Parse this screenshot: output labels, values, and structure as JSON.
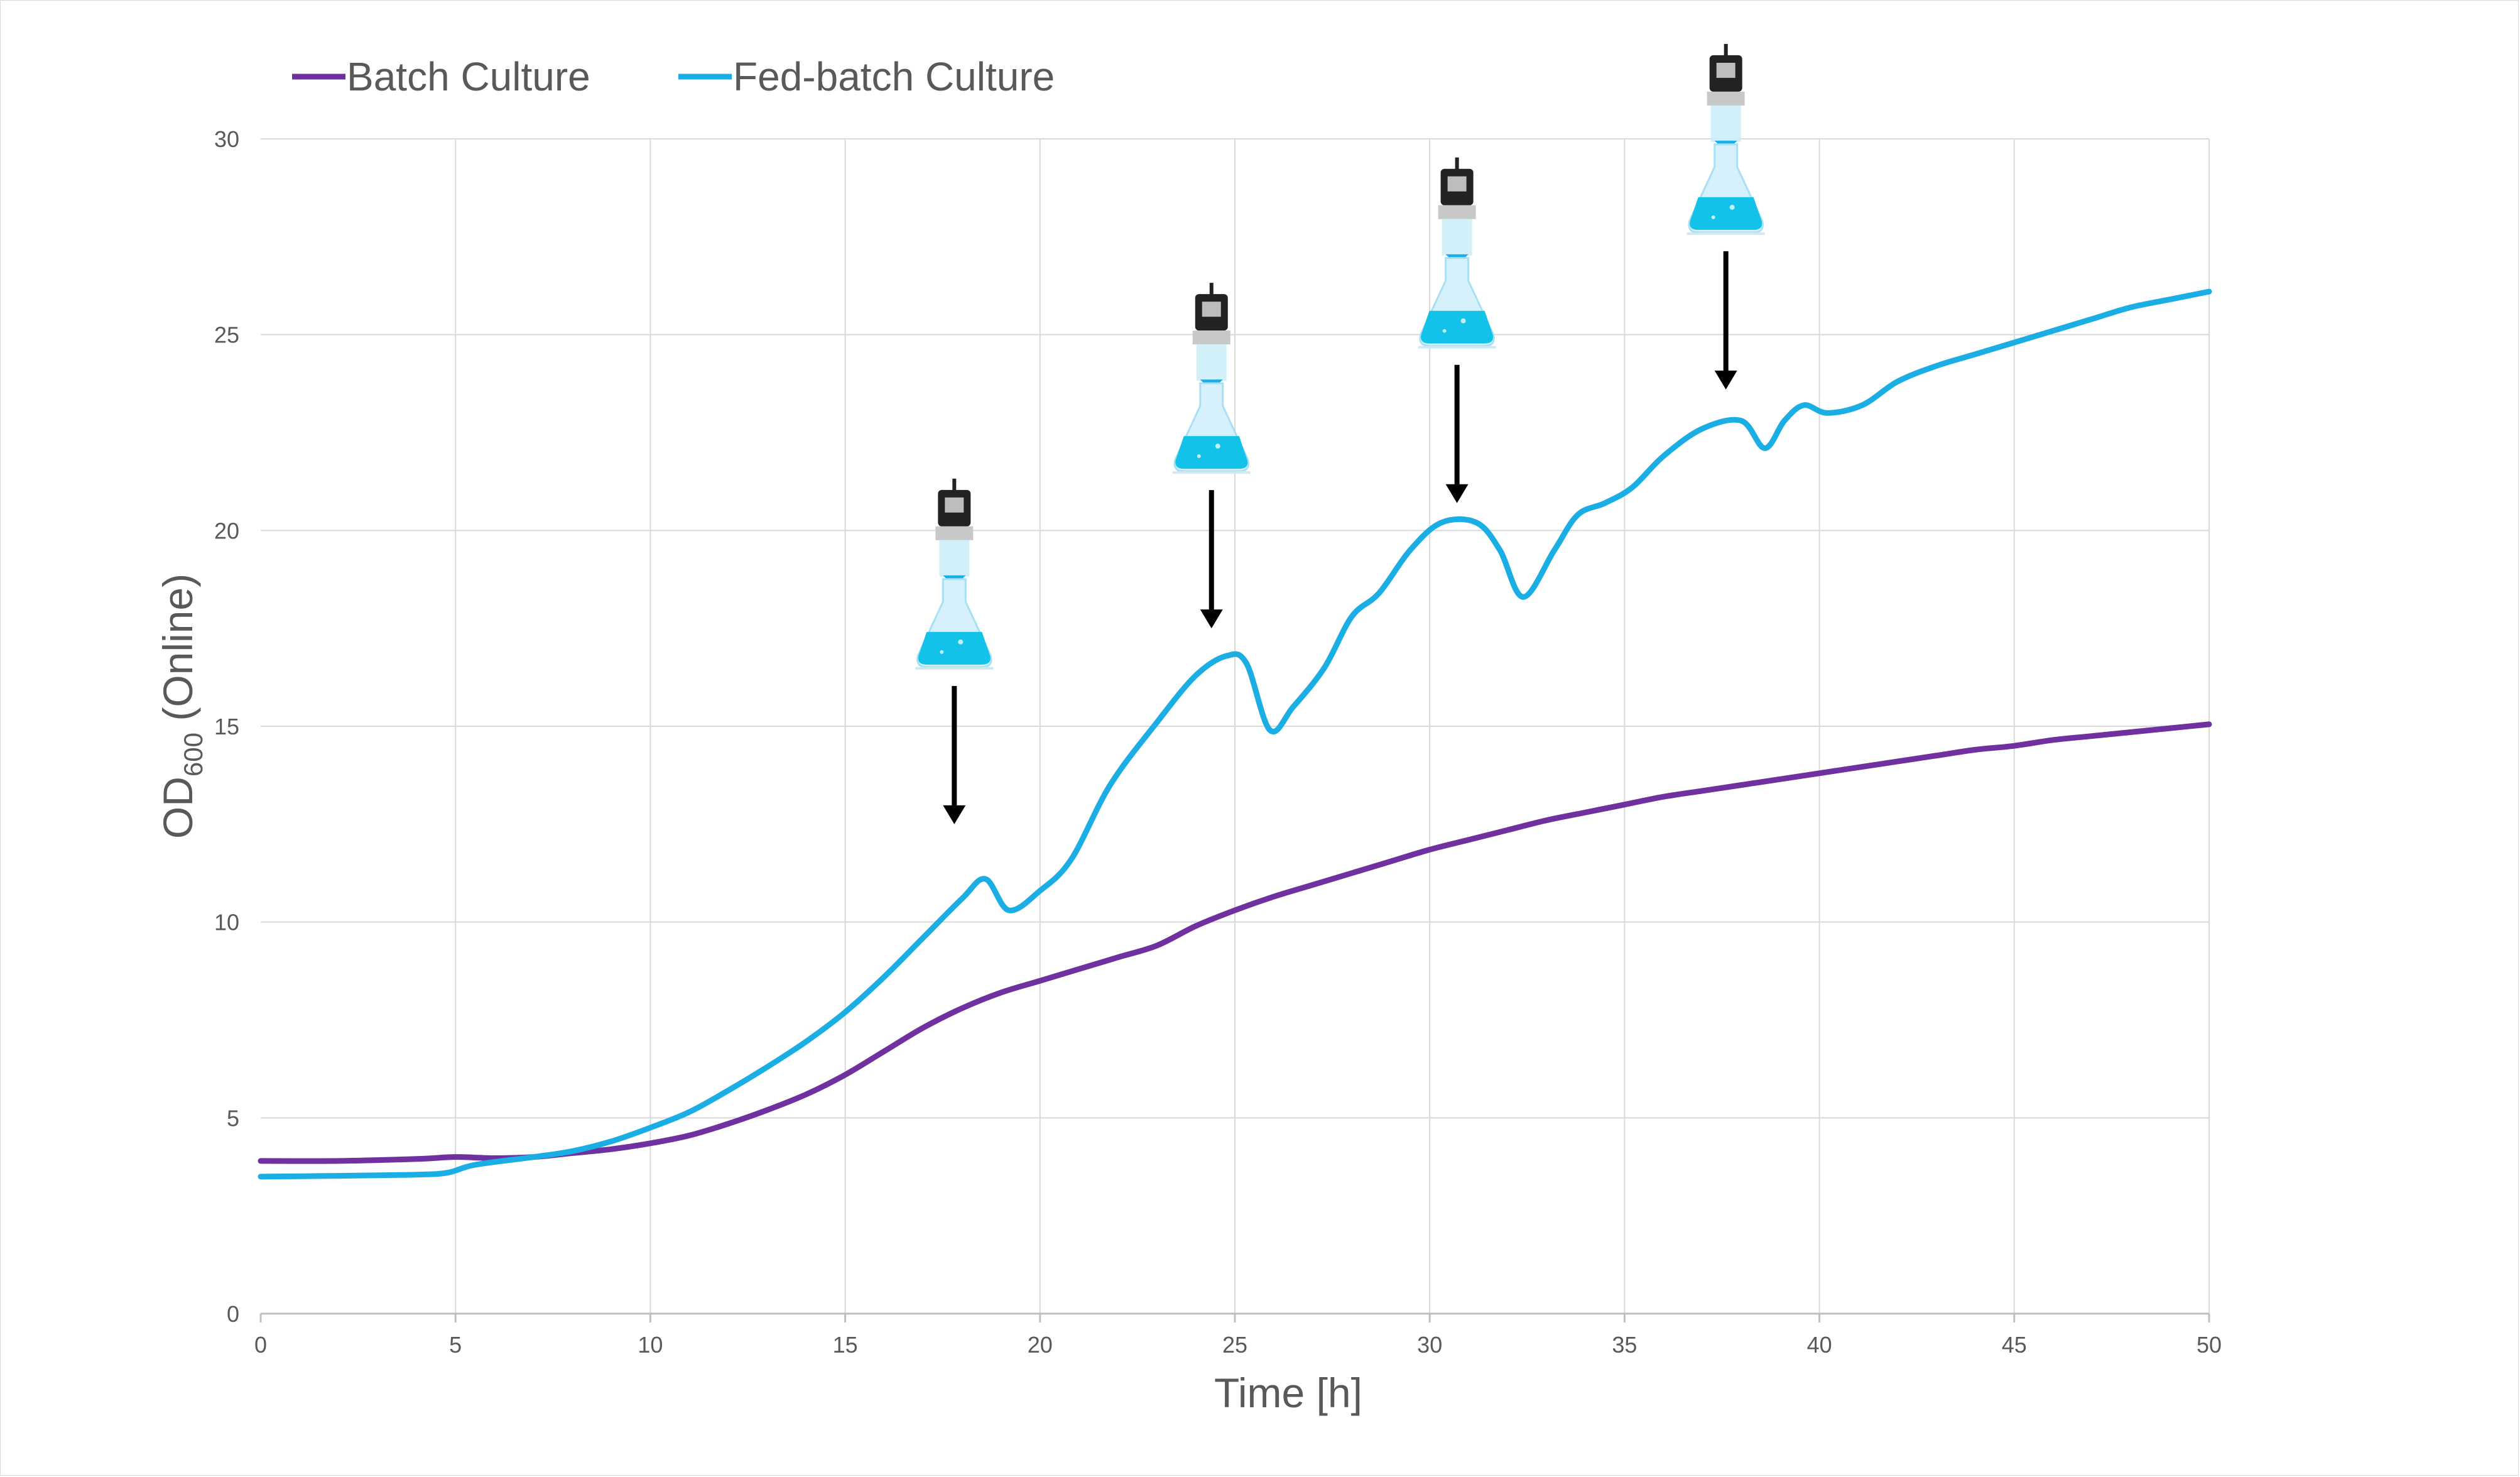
{
  "chart_data": {
    "type": "line",
    "xlabel": "Time [h]",
    "ylabel": {
      "main": "OD",
      "subscript": "600",
      "suffix": " (Online)"
    },
    "xlim": [
      0,
      50
    ],
    "ylim": [
      0,
      30
    ],
    "x_ticks": [
      0,
      5,
      10,
      15,
      20,
      25,
      30,
      35,
      40,
      45,
      50
    ],
    "y_ticks": [
      0,
      5,
      10,
      15,
      20,
      25,
      30
    ],
    "grid": true,
    "legend_position": "top-left",
    "series": [
      {
        "name": "Batch Culture",
        "color": "#7030a0",
        "x": [
          0,
          2,
          4,
          5,
          6,
          7,
          8,
          9,
          10,
          11,
          12,
          13,
          14,
          15,
          16,
          17,
          18,
          19,
          20,
          21,
          22,
          23,
          24,
          25,
          26,
          27,
          28,
          29,
          30,
          31,
          32,
          33,
          34,
          35,
          36,
          37,
          38,
          39,
          40,
          41,
          42,
          43,
          44,
          45,
          46,
          47,
          48,
          49,
          50
        ],
        "values": [
          3.9,
          3.9,
          3.95,
          4.0,
          3.97,
          4.0,
          4.1,
          4.2,
          4.35,
          4.55,
          4.85,
          5.2,
          5.6,
          6.1,
          6.7,
          7.3,
          7.8,
          8.2,
          8.5,
          8.8,
          9.1,
          9.4,
          9.9,
          10.3,
          10.65,
          10.95,
          11.25,
          11.55,
          11.85,
          12.1,
          12.35,
          12.6,
          12.8,
          13.0,
          13.2,
          13.35,
          13.5,
          13.65,
          13.8,
          13.95,
          14.1,
          14.25,
          14.4,
          14.5,
          14.65,
          14.75,
          14.85,
          14.95,
          15.05
        ]
      },
      {
        "name": "Fed-batch Culture",
        "color": "#1aaee5",
        "x": [
          0,
          2,
          4,
          4.8,
          5.5,
          7,
          8,
          9,
          10,
          11,
          12,
          13,
          14,
          15,
          16,
          17,
          18,
          18.6,
          19.2,
          20,
          20.8,
          21.8,
          23,
          24,
          24.8,
          25.3,
          25.9,
          26.5,
          27.3,
          28,
          28.7,
          29.5,
          30.3,
          31.2,
          31.8,
          32.4,
          33.2,
          33.8,
          34.5,
          35.2,
          36,
          37,
          38,
          38.6,
          39.1,
          39.6,
          40.2,
          41.1,
          42,
          43,
          44,
          45,
          46,
          47,
          48,
          49,
          50
        ],
        "values": [
          3.5,
          3.52,
          3.55,
          3.6,
          3.8,
          4.0,
          4.15,
          4.4,
          4.75,
          5.15,
          5.7,
          6.3,
          6.95,
          7.7,
          8.6,
          9.6,
          10.6,
          11.1,
          10.3,
          10.8,
          11.6,
          13.5,
          15.1,
          16.3,
          16.8,
          16.6,
          14.9,
          15.5,
          16.5,
          17.8,
          18.4,
          19.5,
          20.2,
          20.2,
          19.5,
          18.3,
          19.5,
          20.4,
          20.7,
          21.1,
          21.9,
          22.6,
          22.8,
          22.1,
          22.8,
          23.2,
          23.0,
          23.2,
          23.8,
          24.2,
          24.5,
          24.8,
          25.1,
          25.4,
          25.7,
          25.9,
          26.1
        ]
      }
    ],
    "annotations": [
      {
        "type": "feed-flask-arrow",
        "x": 17.8,
        "arrow_tip_y": 12.5
      },
      {
        "type": "feed-flask-arrow",
        "x": 24.4,
        "arrow_tip_y": 17.5
      },
      {
        "type": "feed-flask-arrow",
        "x": 30.7,
        "arrow_tip_y": 20.7
      },
      {
        "type": "feed-flask-arrow",
        "x": 37.6,
        "arrow_tip_y": 23.6
      }
    ]
  }
}
